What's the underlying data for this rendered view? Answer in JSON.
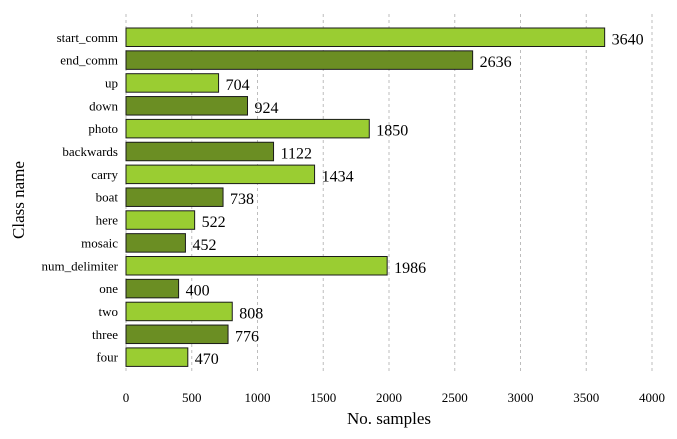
{
  "chart_data": {
    "type": "bar",
    "orientation": "horizontal",
    "xlabel": "No. samples",
    "ylabel": "Class name",
    "xlim": [
      0,
      4000
    ],
    "xticks": [
      0,
      500,
      1000,
      1500,
      2000,
      2500,
      3000,
      3500,
      4000
    ],
    "grid": "vertical dashed",
    "categories": [
      "start_comm",
      "end_comm",
      "up",
      "down",
      "photo",
      "backwards",
      "carry",
      "boat",
      "here",
      "mosaic",
      "num_delimiter",
      "one",
      "two",
      "three",
      "four"
    ],
    "values": [
      3640,
      2636,
      704,
      924,
      1850,
      1122,
      1434,
      738,
      522,
      452,
      1986,
      400,
      808,
      776,
      470
    ],
    "colors": [
      "#9acd32",
      "#6b8e23"
    ]
  }
}
